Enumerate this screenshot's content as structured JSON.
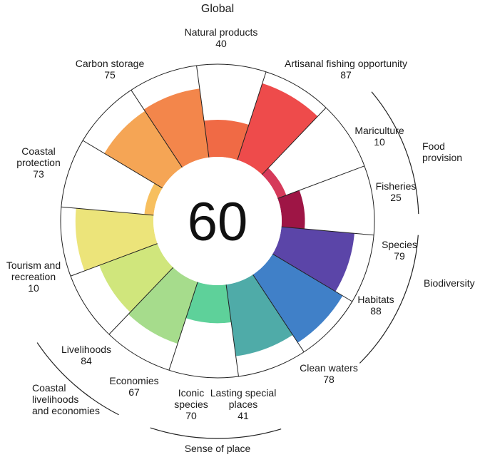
{
  "chart_data": {
    "type": "flower",
    "title": "Global",
    "overall_score": 60,
    "max_score": 100,
    "petals": [
      {
        "name": "Natural products",
        "value": 40,
        "color": "#F06A45"
      },
      {
        "name": "Artisanal fishing opportunity",
        "value": 87,
        "color": "#EE4B4B"
      },
      {
        "name": "Mariculture",
        "value": 10,
        "color": "#D63A5A"
      },
      {
        "name": "Fisheries",
        "value": 25,
        "color": "#9E1545"
      },
      {
        "name": "Species",
        "value": 79,
        "color": "#5B45A8"
      },
      {
        "name": "Habitats",
        "value": 88,
        "color": "#4080C8"
      },
      {
        "name": "Clean waters",
        "value": 78,
        "color": "#4FABA8"
      },
      {
        "name": "Lasting special places",
        "value": 41,
        "color": "#5ED19A"
      },
      {
        "name": "Iconic species",
        "value": 70,
        "color": "#A6DC8C"
      },
      {
        "name": "Economies",
        "value": 67,
        "color": "#D0E67C"
      },
      {
        "name": "Livelihoods",
        "value": 84,
        "color": "#ECE47A"
      },
      {
        "name": "Tourism and recreation",
        "value": 10,
        "color": "#F7BF5E"
      },
      {
        "name": "Coastal protection",
        "value": 73,
        "color": "#F5A555"
      },
      {
        "name": "Carbon storage",
        "value": 75,
        "color": "#F3864B"
      }
    ],
    "groups": [
      {
        "name": "Food provision",
        "label_lines": [
          "Food",
          "provision"
        ]
      },
      {
        "name": "Biodiversity",
        "label_lines": [
          "Biodiversity"
        ]
      },
      {
        "name": "Sense of place",
        "label_lines": [
          "Sense of place"
        ]
      },
      {
        "name": "Coastal livelihoods and economies",
        "label_lines": [
          "Coastal",
          "livelihoods",
          "and economies"
        ]
      }
    ]
  }
}
